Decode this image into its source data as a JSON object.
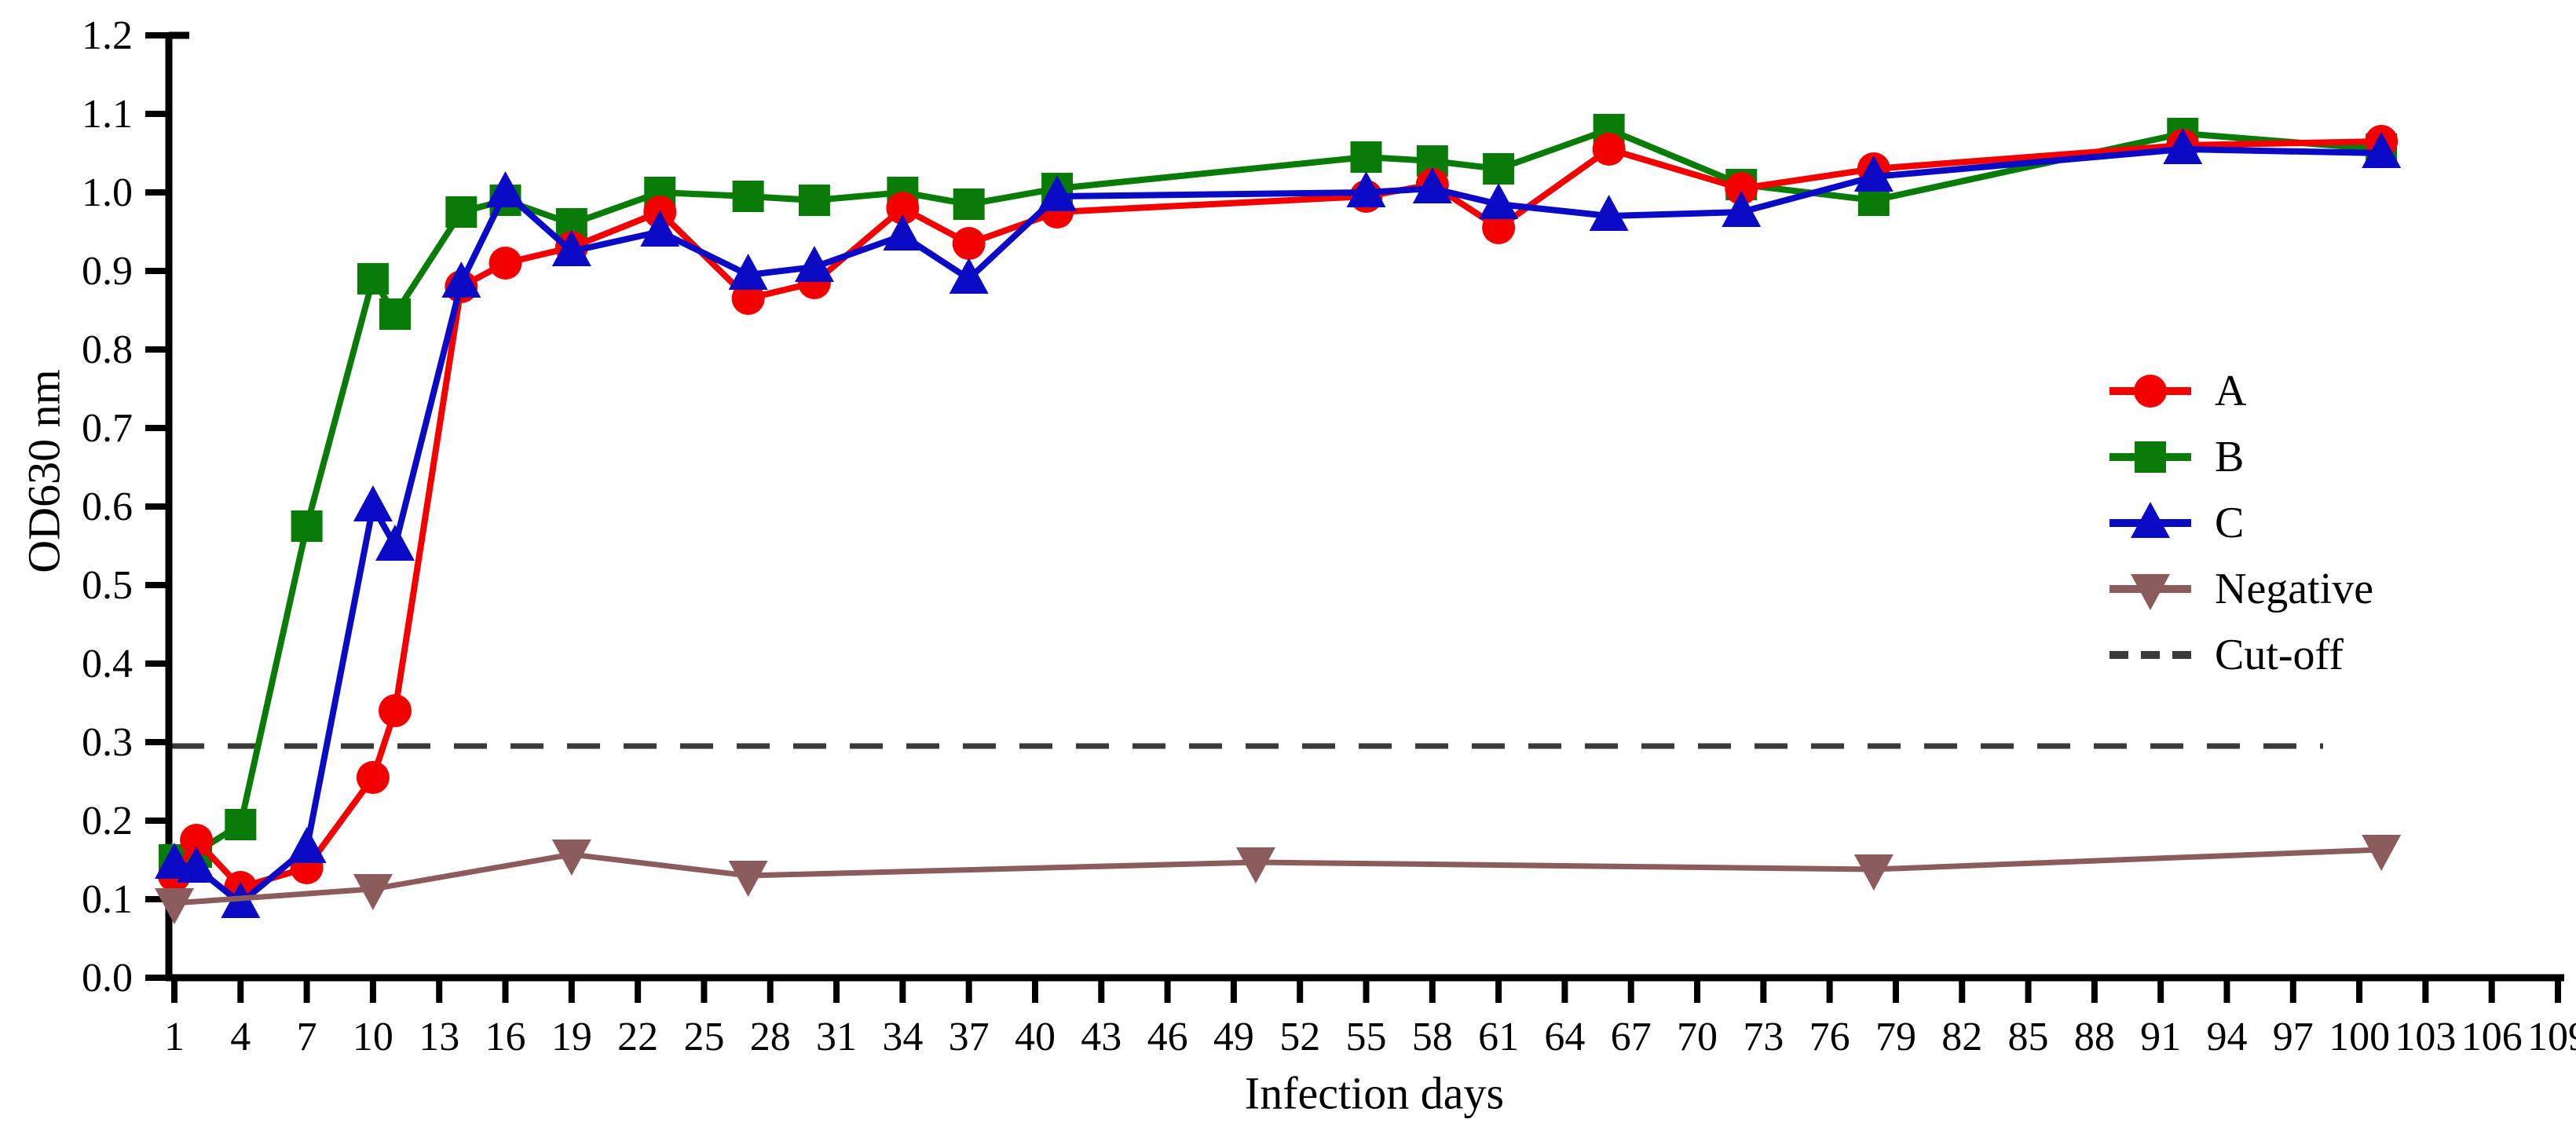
{
  "figure": {
    "xlabel": "Infection days",
    "ylabel": "OD630 nm"
  },
  "colors": {
    "series_a": "#f40000",
    "series_b": "#087c07",
    "series_c": "#0b0bc6",
    "negative": "#8c5b5b",
    "cutoff": "#3a3a3a",
    "axis": "#000000",
    "background": "#ffffff"
  },
  "legend": {
    "position": "right-center",
    "items": [
      {
        "label": "A",
        "marker": "circle",
        "color": "#f40000",
        "line": "solid"
      },
      {
        "label": "B",
        "marker": "square",
        "color": "#087c07",
        "line": "solid"
      },
      {
        "label": "C",
        "marker": "triangle-up",
        "color": "#0b0bc6",
        "line": "solid"
      },
      {
        "label": "Negative",
        "marker": "triangle-down",
        "color": "#8c5b5b",
        "line": "solid"
      },
      {
        "label": "Cut-off",
        "marker": "none",
        "color": "#3a3a3a",
        "line": "dashed"
      }
    ]
  },
  "chart_data": {
    "type": "line",
    "title": "",
    "xlabel": "Infection days",
    "ylabel": "OD630 nm",
    "xlim": [
      1,
      109
    ],
    "ylim": [
      0,
      1.2
    ],
    "grid": false,
    "legend_position": "right-center",
    "x_ticks": [
      1,
      4,
      7,
      10,
      13,
      16,
      19,
      22,
      25,
      28,
      31,
      34,
      37,
      40,
      43,
      46,
      49,
      52,
      55,
      58,
      61,
      64,
      67,
      70,
      73,
      76,
      79,
      82,
      85,
      88,
      91,
      94,
      97,
      100,
      103,
      106,
      109
    ],
    "y_ticks": [
      0,
      0.1,
      0.2,
      0.3,
      0.4,
      0.5,
      0.6,
      0.7,
      0.8,
      0.9,
      1.0,
      1.1,
      1.2
    ],
    "cutoff": {
      "label": "Cut-off",
      "value": 0.295,
      "style": "dashed"
    },
    "series": [
      {
        "name": "A",
        "marker": "circle",
        "color": "#f40000",
        "x": [
          1,
          2,
          4,
          7,
          10,
          11,
          14,
          16,
          19,
          23,
          27,
          30,
          34,
          37,
          41,
          55,
          58,
          61,
          66,
          72,
          78,
          92,
          101
        ],
        "y": [
          0.13,
          0.175,
          0.115,
          0.14,
          0.255,
          0.34,
          0.88,
          0.91,
          0.93,
          0.975,
          0.865,
          0.885,
          0.98,
          0.935,
          0.975,
          0.995,
          1.01,
          0.955,
          1.055,
          1.005,
          1.03,
          1.06,
          1.065
        ]
      },
      {
        "name": "B",
        "marker": "square",
        "color": "#087c07",
        "x": [
          1,
          2,
          4,
          7,
          10,
          11,
          14,
          16,
          19,
          23,
          27,
          30,
          34,
          37,
          41,
          55,
          58,
          61,
          66,
          72,
          78,
          92,
          101
        ],
        "y": [
          0.15,
          0.16,
          0.195,
          0.575,
          0.89,
          0.845,
          0.975,
          0.99,
          0.96,
          1.0,
          0.995,
          0.99,
          1.0,
          0.985,
          1.005,
          1.045,
          1.04,
          1.03,
          1.08,
          1.01,
          0.99,
          1.075,
          1.055
        ]
      },
      {
        "name": "C",
        "marker": "triangle-up",
        "color": "#0b0bc6",
        "x": [
          1,
          2,
          4,
          7,
          10,
          11,
          14,
          16,
          19,
          23,
          27,
          30,
          34,
          37,
          41,
          55,
          58,
          61,
          66,
          72,
          78,
          92,
          101
        ],
        "y": [
          0.145,
          0.14,
          0.095,
          0.165,
          0.6,
          0.55,
          0.885,
          1.0,
          0.925,
          0.95,
          0.895,
          0.905,
          0.945,
          0.89,
          0.995,
          1.0,
          1.005,
          0.985,
          0.97,
          0.975,
          1.02,
          1.055,
          1.05
        ]
      },
      {
        "name": "Negative",
        "marker": "triangle-down",
        "color": "#8c5b5b",
        "x": [
          1,
          10,
          19,
          27,
          50,
          78,
          101
        ],
        "y": [
          0.095,
          0.113,
          0.157,
          0.13,
          0.147,
          0.138,
          0.163
        ]
      }
    ]
  }
}
